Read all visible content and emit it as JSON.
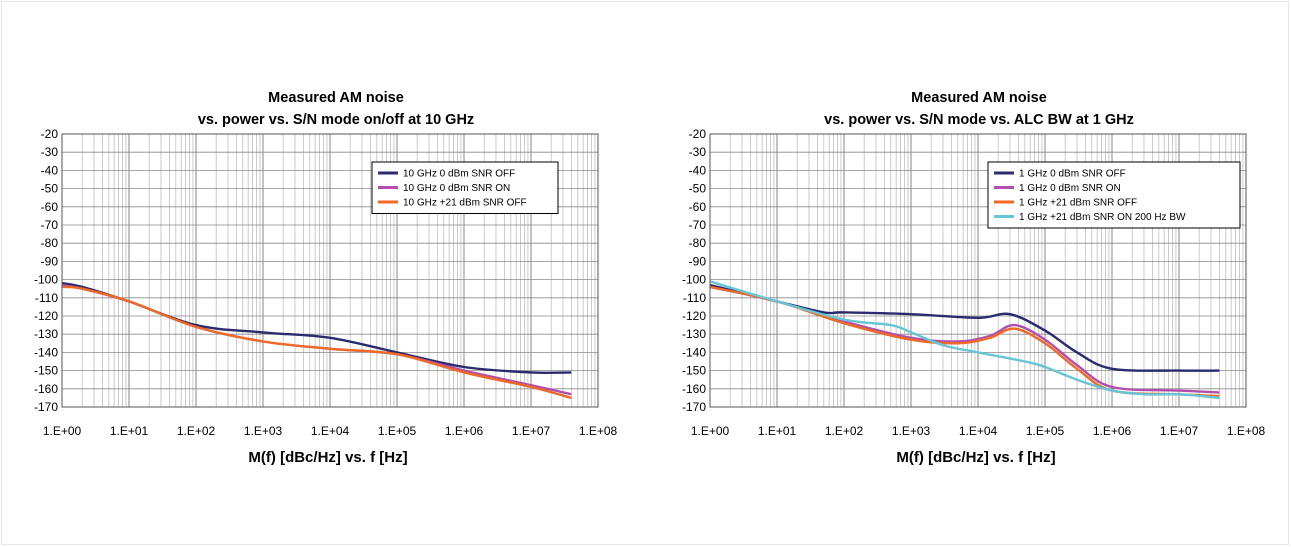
{
  "chart_data": [
    {
      "type": "line",
      "title": "Measured AM noise",
      "subtitle": "vs. power vs. S/N mode on/off at 10 GHz",
      "xlabel": "M(f) [dBc/Hz] vs. f [Hz]",
      "ylabel": "",
      "x_scale": "log",
      "xlim": [
        1,
        100000000
      ],
      "ylim": [
        -170,
        -20
      ],
      "x_ticks": [
        "1.E+00",
        "1.E+01",
        "1.E+02",
        "1.E+03",
        "1.E+04",
        "1.E+05",
        "1.E+06",
        "1.E+07",
        "1.E+08"
      ],
      "y_ticks": [
        "-20",
        "-30",
        "-40",
        "-50",
        "-60",
        "-70",
        "-80",
        "-90",
        "-100",
        "-110",
        "-120",
        "-130",
        "-140",
        "-150",
        "-160",
        "-170"
      ],
      "grid": true,
      "legend_position": "top-right",
      "series": [
        {
          "name": "10 GHz 0 dBm SNR OFF",
          "color": "#2a2a6e",
          "x": [
            1,
            2,
            10,
            100,
            1000,
            10000,
            100000,
            1000000,
            10000000,
            40000000
          ],
          "y": [
            -102,
            -104,
            -112,
            -125,
            -129,
            -132,
            -140,
            -148,
            -151,
            -151
          ]
        },
        {
          "name": "10 GHz 0 dBm SNR ON",
          "color": "#b24fae",
          "x": [
            1,
            2,
            10,
            100,
            1000,
            10000,
            100000,
            1000000,
            10000000,
            40000000
          ],
          "y": [
            -103,
            -105,
            -112,
            -126,
            -134,
            -138,
            -141,
            -150,
            -158,
            -163
          ]
        },
        {
          "name": "10 GHz +21 dBm SNR OFF",
          "color": "#f06a24",
          "x": [
            1,
            2,
            10,
            100,
            1000,
            10000,
            100000,
            1000000,
            10000000,
            40000000
          ],
          "y": [
            -104,
            -105,
            -112,
            -126,
            -134,
            -138,
            -141,
            -151,
            -159,
            -165
          ]
        }
      ]
    },
    {
      "type": "line",
      "title": "Measured AM noise",
      "subtitle": "vs. power vs. S/N mode vs. ALC BW at 1 GHz",
      "xlabel": "M(f) [dBc/Hz] vs. f [Hz]",
      "ylabel": "",
      "x_scale": "log",
      "xlim": [
        1,
        100000000
      ],
      "ylim": [
        -170,
        -20
      ],
      "x_ticks": [
        "1.E+00",
        "1.E+01",
        "1.E+02",
        "1.E+03",
        "1.E+04",
        "1.E+05",
        "1.E+06",
        "1.E+07",
        "1.E+08"
      ],
      "y_ticks": [
        "-20",
        "-30",
        "-40",
        "-50",
        "-60",
        "-70",
        "-80",
        "-90",
        "-100",
        "-110",
        "-120",
        "-130",
        "-140",
        "-150",
        "-160",
        "-170"
      ],
      "grid": true,
      "legend_position": "top-right",
      "series": [
        {
          "name": "1 GHz 0 dBm SNR OFF",
          "color": "#2a2a6e",
          "x": [
            1,
            10,
            50,
            100,
            1000,
            10000,
            30000,
            100000,
            300000,
            1000000,
            10000000,
            40000000
          ],
          "y": [
            -103,
            -112,
            -118,
            -118,
            -119,
            -121,
            -119,
            -128,
            -140,
            -149,
            -150,
            -150
          ]
        },
        {
          "name": "1 GHz 0 dBm SNR ON",
          "color": "#b24fae",
          "x": [
            1,
            10,
            100,
            1000,
            5000,
            15000,
            35000,
            100000,
            300000,
            1000000,
            10000000,
            40000000
          ],
          "y": [
            -104,
            -112,
            -123,
            -132,
            -134,
            -131,
            -125,
            -133,
            -147,
            -159,
            -161,
            -162
          ]
        },
        {
          "name": "1 GHz +21 dBm SNR OFF",
          "color": "#f06a24",
          "x": [
            1,
            10,
            100,
            1000,
            5000,
            15000,
            35000,
            100000,
            300000,
            1000000,
            10000000,
            40000000
          ],
          "y": [
            -104,
            -112,
            -124,
            -133,
            -135,
            -132,
            -127,
            -135,
            -149,
            -161,
            -163,
            -164
          ]
        },
        {
          "name": "1 GHz +21 dBm SNR ON 200 Hz BW",
          "color": "#66c6d8",
          "x": [
            1,
            10,
            100,
            500,
            1000,
            3000,
            10000,
            50000,
            100000,
            300000,
            1000000,
            3000000,
            10000000,
            40000000
          ],
          "y": [
            -101,
            -112,
            -122,
            -125,
            -129,
            -136,
            -140,
            -145,
            -148,
            -155,
            -161,
            -163,
            -163,
            -165
          ]
        }
      ]
    }
  ]
}
